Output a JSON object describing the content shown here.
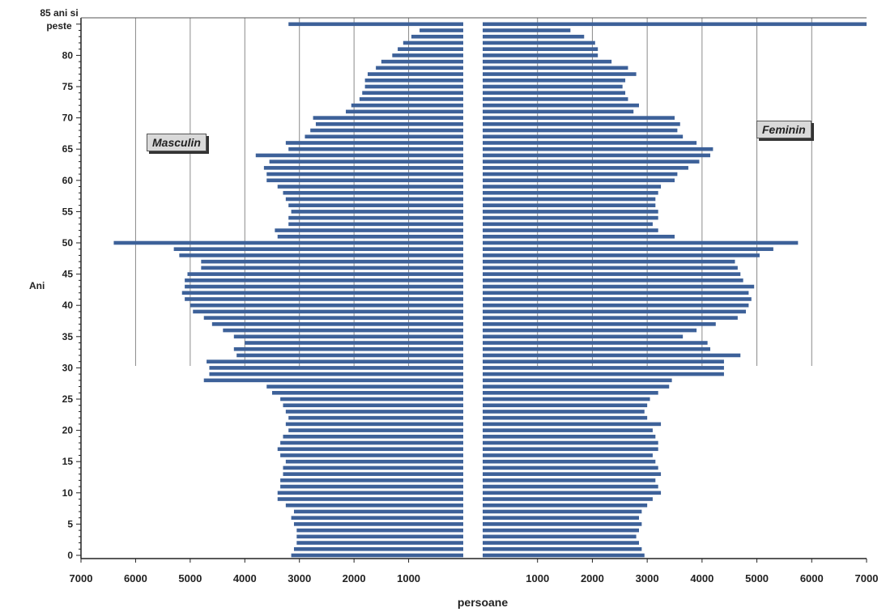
{
  "chart_data": {
    "type": "bar",
    "orientation": "horizontal-population-pyramid",
    "ylabel": "Ani",
    "xlabel": "persoane",
    "x_ticks_left": [
      "7000",
      "6000",
      "5000",
      "4000",
      "3000",
      "2000",
      "1000"
    ],
    "x_ticks_right": [
      "1000",
      "2000",
      "3000",
      "4000",
      "5000",
      "6000",
      "7000"
    ],
    "y_ticks": [
      "0",
      "5",
      "10",
      "15",
      "20",
      "25",
      "30",
      "35",
      "40",
      "45",
      "50",
      "55",
      "60",
      "65",
      "70",
      "75",
      "80"
    ],
    "top_label_line1": "85 ani si",
    "top_label_line2": "peste",
    "xlim": [
      0,
      7000
    ],
    "grid": "vertical",
    "bar_color": "#3d6199",
    "series": [
      {
        "name": "Masculin",
        "ages": [
          0,
          1,
          2,
          3,
          4,
          5,
          6,
          7,
          8,
          9,
          10,
          11,
          12,
          13,
          14,
          15,
          16,
          17,
          18,
          19,
          20,
          21,
          22,
          23,
          24,
          25,
          26,
          27,
          28,
          29,
          30,
          31,
          32,
          33,
          34,
          35,
          36,
          37,
          38,
          39,
          40,
          41,
          42,
          43,
          44,
          45,
          46,
          47,
          48,
          49,
          50,
          51,
          52,
          53,
          54,
          55,
          56,
          57,
          58,
          59,
          60,
          61,
          62,
          63,
          64,
          65,
          66,
          67,
          68,
          69,
          70,
          71,
          72,
          73,
          74,
          75,
          76,
          77,
          78,
          79,
          80,
          81,
          82,
          83,
          84,
          "85+"
        ],
        "values": [
          3150,
          3100,
          3050,
          3050,
          3050,
          3100,
          3150,
          3100,
          3250,
          3400,
          3400,
          3350,
          3350,
          3300,
          3300,
          3250,
          3350,
          3400,
          3350,
          3300,
          3200,
          3250,
          3200,
          3250,
          3300,
          3350,
          3500,
          3600,
          4750,
          4650,
          4650,
          4700,
          4150,
          4200,
          4000,
          4200,
          4400,
          4600,
          4750,
          4950,
          5000,
          5100,
          5150,
          5100,
          5100,
          5050,
          4800,
          4800,
          5200,
          5300,
          6400,
          3400,
          3450,
          3200,
          3200,
          3150,
          3200,
          3250,
          3300,
          3400,
          3600,
          3600,
          3650,
          3550,
          3800,
          3200,
          3250,
          2900,
          2800,
          2700,
          2750,
          2150,
          2050,
          1900,
          1850,
          1800,
          1800,
          1750,
          1600,
          1500,
          1300,
          1200,
          1100,
          950,
          800,
          3200
        ]
      },
      {
        "name": "Feminin",
        "ages": [
          0,
          1,
          2,
          3,
          4,
          5,
          6,
          7,
          8,
          9,
          10,
          11,
          12,
          13,
          14,
          15,
          16,
          17,
          18,
          19,
          20,
          21,
          22,
          23,
          24,
          25,
          26,
          27,
          28,
          29,
          30,
          31,
          32,
          33,
          34,
          35,
          36,
          37,
          38,
          39,
          40,
          41,
          42,
          43,
          44,
          45,
          46,
          47,
          48,
          49,
          50,
          51,
          52,
          53,
          54,
          55,
          56,
          57,
          58,
          59,
          60,
          61,
          62,
          63,
          64,
          65,
          66,
          67,
          68,
          69,
          70,
          71,
          72,
          73,
          74,
          75,
          76,
          77,
          78,
          79,
          80,
          81,
          82,
          83,
          84,
          "85+"
        ],
        "values": [
          2950,
          2900,
          2850,
          2800,
          2850,
          2900,
          2850,
          2900,
          3000,
          3100,
          3250,
          3200,
          3150,
          3250,
          3200,
          3150,
          3100,
          3200,
          3200,
          3150,
          3100,
          3250,
          3000,
          2950,
          3000,
          3050,
          3200,
          3400,
          3450,
          4400,
          4400,
          4400,
          4700,
          4150,
          4100,
          3650,
          3900,
          4250,
          4650,
          4800,
          4850,
          4900,
          4850,
          4950,
          4750,
          4700,
          4650,
          4600,
          5050,
          5300,
          5750,
          3500,
          3200,
          3100,
          3200,
          3200,
          3150,
          3150,
          3200,
          3250,
          3500,
          3550,
          3750,
          3950,
          4150,
          4200,
          3900,
          3650,
          3550,
          3600,
          3500,
          2750,
          2850,
          2650,
          2600,
          2550,
          2600,
          2800,
          2650,
          2350,
          2100,
          2100,
          2050,
          1850,
          1600,
          7000
        ]
      }
    ]
  },
  "labels": {
    "masculin": "Masculin",
    "feminin": "Feminin"
  }
}
